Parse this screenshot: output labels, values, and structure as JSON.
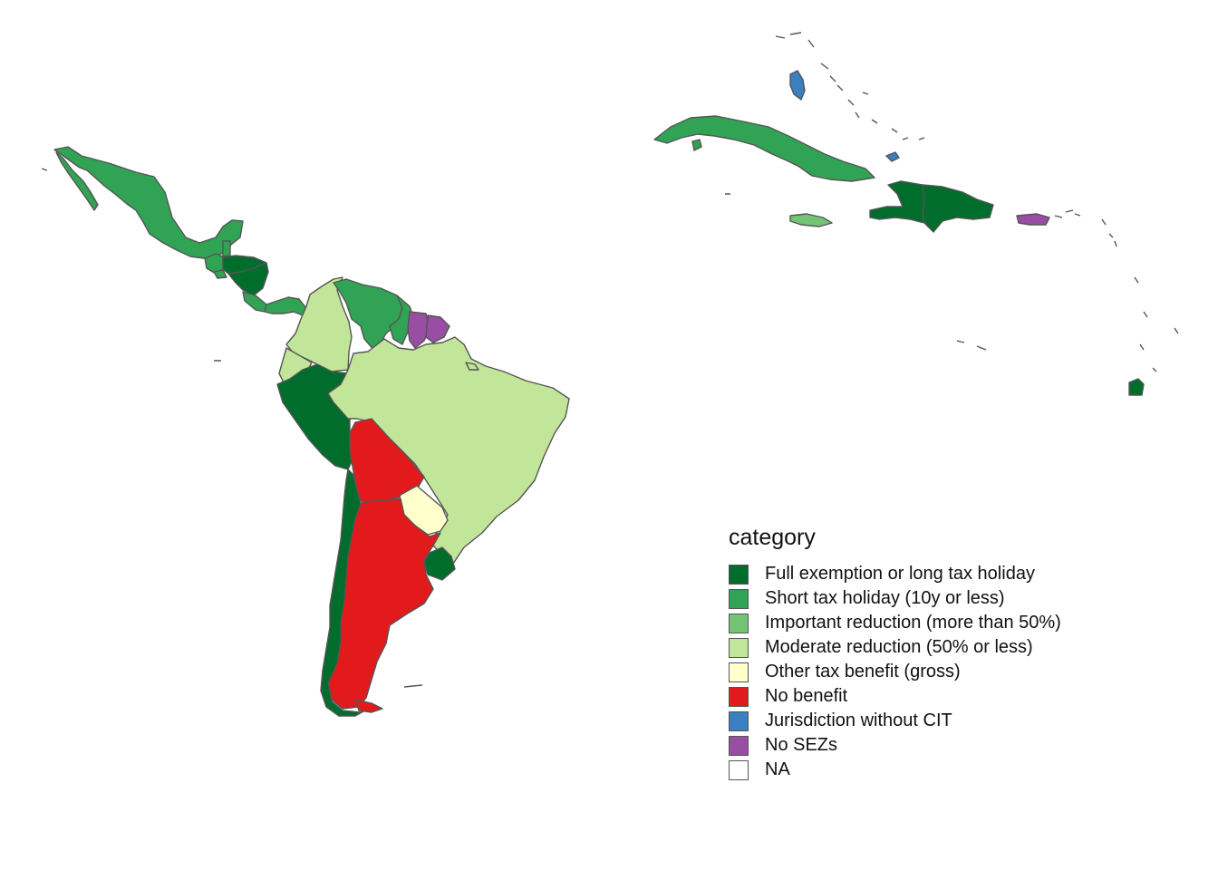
{
  "legend": {
    "title": "category",
    "items": [
      {
        "key": "full",
        "label": "Full exemption or long tax holiday",
        "color": "#006d2c"
      },
      {
        "key": "short",
        "label": "Short tax holiday (10y or less)",
        "color": "#31a354"
      },
      {
        "key": "important",
        "label": "Important reduction (more than 50%)",
        "color": "#74c476"
      },
      {
        "key": "moderate",
        "label": "Moderate reduction (50% or less)",
        "color": "#c2e699"
      },
      {
        "key": "other",
        "label": "Other tax benefit (gross)",
        "color": "#ffffcc"
      },
      {
        "key": "none",
        "label": "No benefit",
        "color": "#e31a1c"
      },
      {
        "key": "nocit",
        "label": "Jurisdiction without CIT",
        "color": "#3a7fbf"
      },
      {
        "key": "nosez",
        "label": "No SEZs",
        "color": "#984ea3"
      },
      {
        "key": "na",
        "label": "NA",
        "color": "#ffffff"
      }
    ]
  },
  "regions": [
    {
      "name": "Mexico",
      "category": "short"
    },
    {
      "name": "Guatemala",
      "category": "short"
    },
    {
      "name": "Belize",
      "category": "short"
    },
    {
      "name": "El Salvador",
      "category": "short"
    },
    {
      "name": "Honduras",
      "category": "full"
    },
    {
      "name": "Nicaragua",
      "category": "full"
    },
    {
      "name": "Costa Rica",
      "category": "short"
    },
    {
      "name": "Panama",
      "category": "short"
    },
    {
      "name": "Colombia",
      "category": "moderate"
    },
    {
      "name": "Venezuela",
      "category": "short"
    },
    {
      "name": "Guyana",
      "category": "short"
    },
    {
      "name": "Suriname",
      "category": "nosez"
    },
    {
      "name": "French Guiana",
      "category": "nosez"
    },
    {
      "name": "Ecuador",
      "category": "moderate"
    },
    {
      "name": "Peru",
      "category": "full"
    },
    {
      "name": "Brazil",
      "category": "moderate"
    },
    {
      "name": "Bolivia",
      "category": "none"
    },
    {
      "name": "Paraguay",
      "category": "other"
    },
    {
      "name": "Uruguay",
      "category": "full"
    },
    {
      "name": "Argentina",
      "category": "none"
    },
    {
      "name": "Chile",
      "category": "full"
    },
    {
      "name": "Cuba",
      "category": "short"
    },
    {
      "name": "Jamaica",
      "category": "important"
    },
    {
      "name": "Haiti",
      "category": "full"
    },
    {
      "name": "Dominican Republic",
      "category": "full"
    },
    {
      "name": "Puerto Rico",
      "category": "nosez"
    },
    {
      "name": "Bahamas",
      "category": "nocit"
    },
    {
      "name": "Turks and Caicos",
      "category": "nocit"
    },
    {
      "name": "Trinidad and Tobago",
      "category": "full"
    }
  ]
}
